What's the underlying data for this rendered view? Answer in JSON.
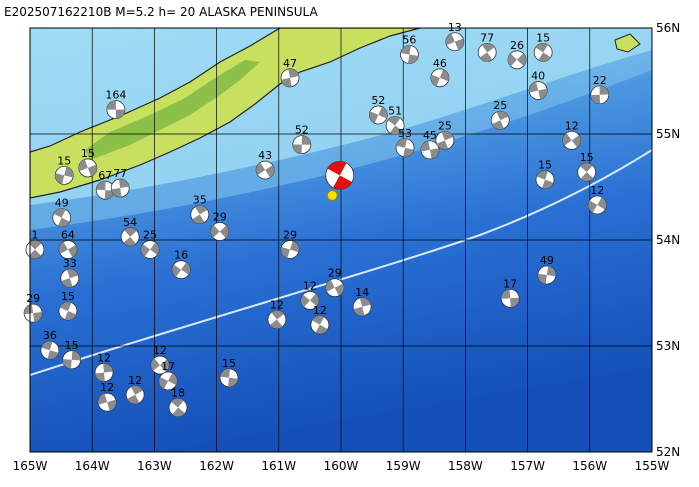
{
  "title": "E202507162210B M=5.2 h= 20 ALASKA PENINSULA",
  "xlim": [
    -165,
    -155
  ],
  "ylim": [
    52,
    56
  ],
  "lon_ticks": [
    {
      "value": -165,
      "label": "165W"
    },
    {
      "value": -164,
      "label": "164W"
    },
    {
      "value": -163,
      "label": "163W"
    },
    {
      "value": -162,
      "label": "162W"
    },
    {
      "value": -161,
      "label": "161W"
    },
    {
      "value": -160,
      "label": "160W"
    },
    {
      "value": -159,
      "label": "159W"
    },
    {
      "value": -158,
      "label": "158W"
    },
    {
      "value": -157,
      "label": "157W"
    },
    {
      "value": -156,
      "label": "156W"
    },
    {
      "value": -155,
      "label": "155W"
    }
  ],
  "lat_ticks": [
    {
      "value": 56,
      "label": "56N"
    },
    {
      "value": 55,
      "label": "55N"
    },
    {
      "value": 54,
      "label": "54N"
    },
    {
      "value": 53,
      "label": "53N"
    },
    {
      "value": 52,
      "label": "52N"
    }
  ],
  "main_event": {
    "lon": -160.02,
    "lat": 54.61
  },
  "epicenter": {
    "lon": -160.14,
    "lat": 54.42
  },
  "events": [
    {
      "label": "164",
      "lon": -163.62,
      "lat": 55.23
    },
    {
      "label": "47",
      "lon": -160.82,
      "lat": 55.53
    },
    {
      "label": "13",
      "lon": -158.17,
      "lat": 55.87
    },
    {
      "label": "77",
      "lon": -157.65,
      "lat": 55.77
    },
    {
      "label": "26",
      "lon": -157.17,
      "lat": 55.7
    },
    {
      "label": "15",
      "lon": -156.75,
      "lat": 55.77
    },
    {
      "label": "46",
      "lon": -158.41,
      "lat": 55.53
    },
    {
      "label": "56",
      "lon": -158.9,
      "lat": 55.75
    },
    {
      "label": "22",
      "lon": -155.84,
      "lat": 55.37
    },
    {
      "label": "40",
      "lon": -156.83,
      "lat": 55.41
    },
    {
      "label": "25",
      "lon": -157.44,
      "lat": 55.13
    },
    {
      "label": "12",
      "lon": -156.29,
      "lat": 54.94
    },
    {
      "label": "15",
      "lon": -156.05,
      "lat": 54.64
    },
    {
      "label": "12",
      "lon": -155.88,
      "lat": 54.33
    },
    {
      "label": "15",
      "lon": -156.72,
      "lat": 54.57
    },
    {
      "label": "49",
      "lon": -156.69,
      "lat": 53.67
    },
    {
      "label": "17",
      "lon": -157.28,
      "lat": 53.45
    },
    {
      "label": "14",
      "lon": -159.66,
      "lat": 53.37
    },
    {
      "label": "29",
      "lon": -160.1,
      "lat": 53.55
    },
    {
      "label": "12",
      "lon": -161.03,
      "lat": 53.25
    },
    {
      "label": "12",
      "lon": -160.5,
      "lat": 53.43
    },
    {
      "label": "12",
      "lon": -160.34,
      "lat": 53.2
    },
    {
      "label": "29",
      "lon": -160.82,
      "lat": 53.91
    },
    {
      "label": "15",
      "lon": -161.8,
      "lat": 52.7
    },
    {
      "label": "12",
      "lon": -163.81,
      "lat": 52.75
    },
    {
      "label": "12",
      "lon": -163.76,
      "lat": 52.47
    },
    {
      "label": "12",
      "lon": -163.31,
      "lat": 52.54
    },
    {
      "label": "12",
      "lon": -162.91,
      "lat": 52.82
    },
    {
      "label": "18",
      "lon": -162.62,
      "lat": 52.42
    },
    {
      "label": "17",
      "lon": -162.78,
      "lat": 52.67
    },
    {
      "label": "36",
      "lon": -164.68,
      "lat": 52.96
    },
    {
      "label": "15",
      "lon": -164.33,
      "lat": 52.87
    },
    {
      "label": "29",
      "lon": -164.95,
      "lat": 53.31
    },
    {
      "label": "33",
      "lon": -164.36,
      "lat": 53.64
    },
    {
      "label": "64",
      "lon": -164.39,
      "lat": 53.91
    },
    {
      "label": "54",
      "lon": -163.39,
      "lat": 54.03
    },
    {
      "label": "25",
      "lon": -163.07,
      "lat": 53.91
    },
    {
      "label": "49",
      "lon": -164.49,
      "lat": 54.21
    },
    {
      "label": "15",
      "lon": -164.45,
      "lat": 54.61
    },
    {
      "label": "67",
      "lon": -163.79,
      "lat": 54.47
    },
    {
      "label": "77",
      "lon": -163.55,
      "lat": 54.49
    },
    {
      "label": "15",
      "lon": -164.07,
      "lat": 54.68
    },
    {
      "label": "35",
      "lon": -162.27,
      "lat": 54.24
    },
    {
      "label": "29",
      "lon": -161.95,
      "lat": 54.08
    },
    {
      "label": "51",
      "lon": -159.13,
      "lat": 55.08
    },
    {
      "label": "52",
      "lon": -159.4,
      "lat": 55.18
    },
    {
      "label": "53",
      "lon": -158.97,
      "lat": 54.87
    },
    {
      "label": "52",
      "lon": -160.63,
      "lat": 54.9
    },
    {
      "label": "45",
      "lon": -158.57,
      "lat": 54.85
    },
    {
      "label": "25",
      "lon": -158.33,
      "lat": 54.94
    },
    {
      "label": "43",
      "lon": -161.22,
      "lat": 54.66
    },
    {
      "label": "1",
      "lon": -164.92,
      "lat": 53.91
    },
    {
      "label": "16",
      "lon": -162.57,
      "lat": 53.72
    },
    {
      "label": "15",
      "lon": -164.39,
      "lat": 53.33
    }
  ]
}
